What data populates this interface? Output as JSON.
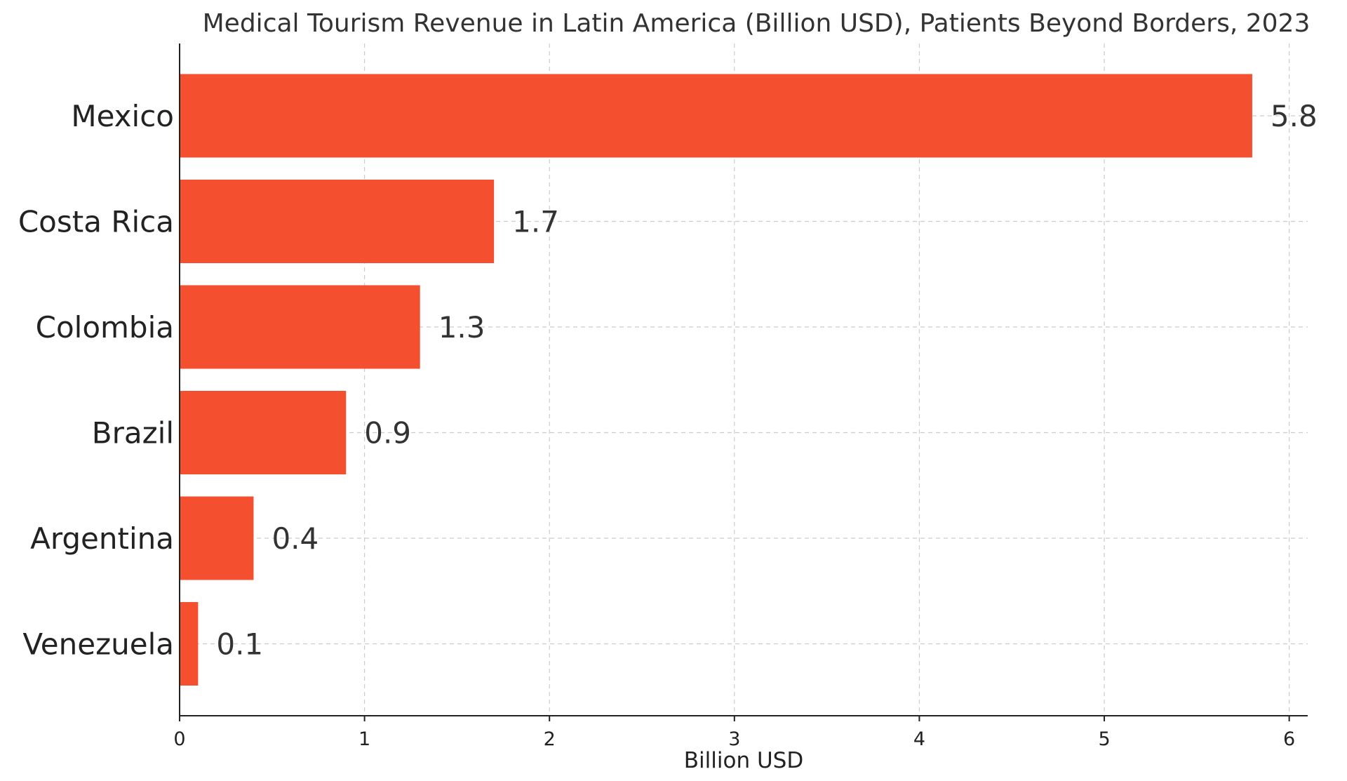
{
  "chart_data": {
    "type": "bar",
    "orientation": "horizontal",
    "title": "Medical Tourism Revenue in Latin America (Billion USD), Patients Beyond Borders, 2023",
    "xlabel": "Billion USD",
    "ylabel": "",
    "categories": [
      "Mexico",
      "Costa Rica",
      "Colombia",
      "Brazil",
      "Argentina",
      "Venezuela"
    ],
    "values": [
      5.8,
      1.7,
      1.3,
      0.9,
      0.4,
      0.1
    ],
    "value_labels": [
      "5.8",
      "1.7",
      "1.3",
      "0.9",
      "0.4",
      "0.1"
    ],
    "xlim": [
      0,
      6.1
    ],
    "xticks": [
      0,
      1,
      2,
      3,
      4,
      5,
      6
    ],
    "xtick_labels": [
      "0",
      "1",
      "2",
      "3",
      "4",
      "5",
      "6"
    ],
    "grid": true,
    "bar_color": "#f44f2f"
  }
}
